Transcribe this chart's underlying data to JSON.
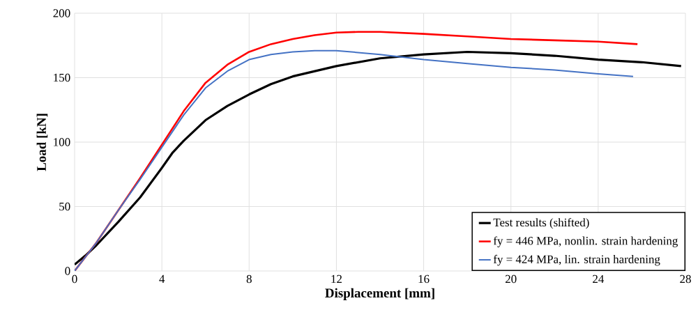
{
  "chart_data": {
    "type": "line",
    "xlabel": "Displacement [mm]",
    "ylabel": "Load [kN]",
    "xlim": [
      0,
      28
    ],
    "ylim": [
      0,
      200
    ],
    "xticks": [
      0,
      4,
      8,
      12,
      16,
      20,
      24,
      28
    ],
    "yticks": [
      0,
      50,
      100,
      150,
      200
    ],
    "grid": true,
    "legend": "bottom right",
    "marker": "none",
    "line_style": "solid",
    "series": [
      {
        "name": "Test results (shifted)",
        "color": "#000000",
        "x": [
          0,
          0.5,
          1,
          2,
          3,
          4,
          4.5,
          5,
          6,
          7,
          8,
          9,
          10,
          12,
          14,
          16,
          18,
          20,
          22,
          24,
          26,
          27.8
        ],
        "values": [
          5,
          12,
          20,
          38,
          57,
          80,
          92,
          101,
          117,
          128,
          137,
          145,
          151,
          159,
          165,
          168,
          170,
          169,
          167,
          164,
          162,
          159
        ]
      },
      {
        "name": "fy = 446 MPa, nonlin. strain hardening",
        "color": "#ff0000",
        "x": [
          0,
          1,
          2,
          3,
          4,
          5,
          6,
          7,
          8,
          9,
          10,
          11,
          12,
          13,
          14,
          16,
          18,
          20,
          22,
          24,
          25.8
        ],
        "values": [
          0,
          22,
          47,
          72,
          98,
          124,
          146,
          160,
          170,
          176,
          180,
          183,
          185,
          185.5,
          185.5,
          184,
          182,
          180,
          179,
          178,
          176
        ]
      },
      {
        "name": "fy = 424 MPa, lin. strain hardening",
        "color": "#4472c4",
        "x": [
          0,
          1,
          2,
          3,
          4,
          5,
          6,
          7,
          8,
          9,
          10,
          11,
          12,
          14,
          16,
          18,
          20,
          22,
          24,
          25.6
        ],
        "values": [
          0,
          22,
          47,
          71,
          96,
          121,
          142,
          155,
          164,
          168,
          170,
          171,
          171,
          168,
          164,
          161,
          158,
          156,
          153,
          151
        ]
      }
    ]
  }
}
